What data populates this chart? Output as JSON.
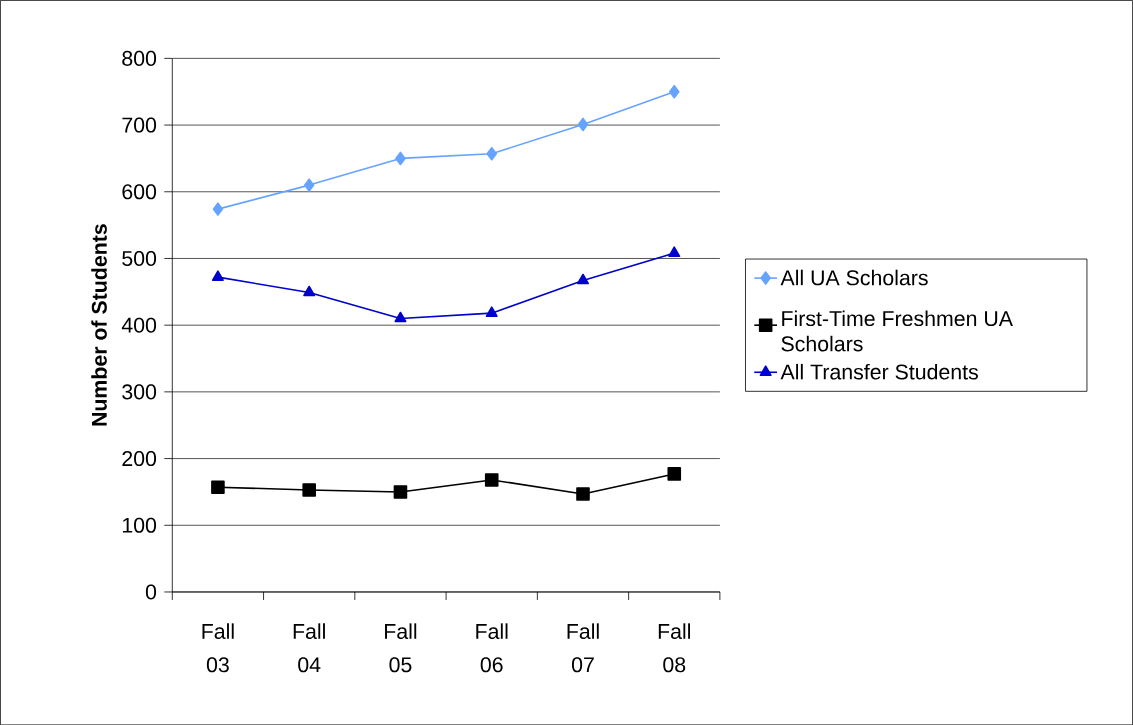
{
  "chart_data": {
    "type": "line",
    "ylabel": "Number of Students",
    "categories": [
      "Fall 03",
      "Fall 04",
      "Fall 05",
      "Fall 06",
      "Fall 07",
      "Fall 08"
    ],
    "series": [
      {
        "name": "All UA Scholars",
        "color": "#66a3ff",
        "marker": "diamond",
        "values": [
          574,
          610,
          650,
          657,
          701,
          750
        ]
      },
      {
        "name": "First-Time Freshmen UA Scholars",
        "color": "#000000",
        "marker": "square",
        "values": [
          157,
          153,
          150,
          168,
          147,
          177
        ]
      },
      {
        "name": "All Transfer Students",
        "color": "#0000cc",
        "marker": "triangle",
        "values": [
          472,
          449,
          410,
          418,
          467,
          508
        ]
      }
    ],
    "ylim": [
      0,
      800
    ],
    "yticks": [
      0,
      100,
      200,
      300,
      400,
      500,
      600,
      700,
      800
    ],
    "grid": "y",
    "legend": "right",
    "line_style": "solid"
  }
}
